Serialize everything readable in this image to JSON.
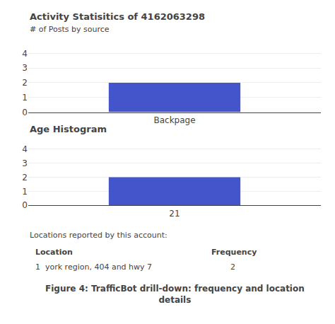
{
  "chart_data": [
    {
      "type": "bar",
      "title": "Activity Statisitics of 4162063298",
      "subtitle": "# of Posts by source",
      "categories": [
        "Backpage"
      ],
      "values": [
        2
      ],
      "color": "#4455cc",
      "ylim": [
        0,
        4.5
      ],
      "yticks": [
        0,
        1,
        2,
        3,
        4
      ],
      "grid": true
    },
    {
      "type": "bar",
      "title": "Age Histogram",
      "categories": [
        "21"
      ],
      "values": [
        2
      ],
      "color": "#4455cc",
      "ylim": [
        0,
        4.5
      ],
      "yticks": [
        0,
        1,
        2,
        3,
        4
      ],
      "grid": true,
      "annotations": [
        "Locations reported by this account:",
        "Location",
        "Frequency",
        "1  york region, 404 and hwy 7",
        "2",
        "Figure 4: TrafficBot drill-down: frequency and location\ndetails"
      ]
    }
  ]
}
